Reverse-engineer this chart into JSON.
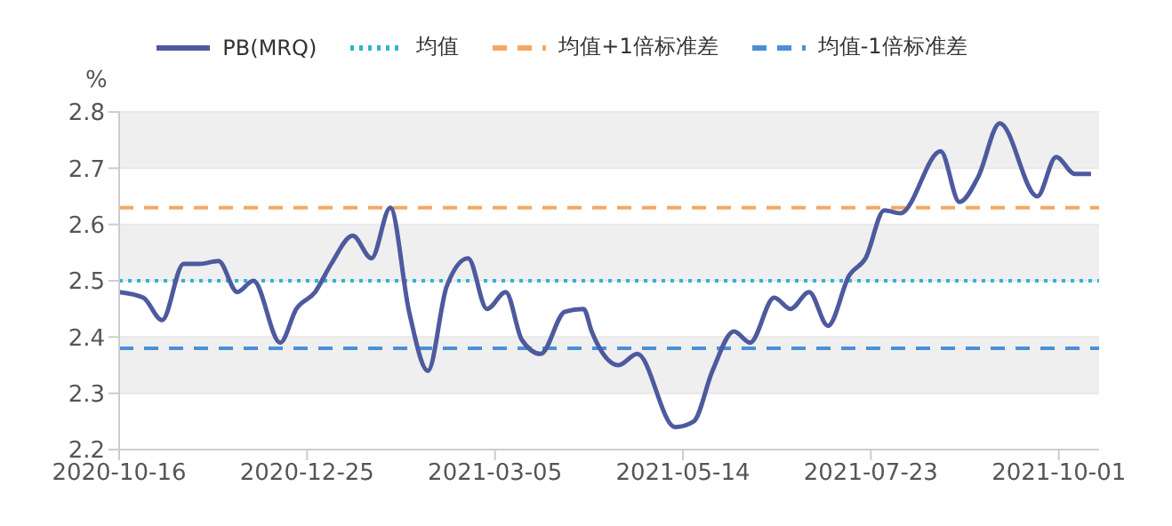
{
  "chart_data": {
    "type": "line",
    "ylabel": "%",
    "x": [
      "2020-10-16",
      "2020-10-25",
      "2020-11-01",
      "2020-11-09",
      "2020-11-15",
      "2020-11-22",
      "2020-11-29",
      "2020-12-05",
      "2020-12-15",
      "2020-12-21",
      "2020-12-28",
      "2021-01-03",
      "2021-01-11",
      "2021-01-18",
      "2021-01-25",
      "2021-02-01",
      "2021-02-08",
      "2021-02-15",
      "2021-02-23",
      "2021-03-02",
      "2021-03-09",
      "2021-03-15",
      "2021-03-22",
      "2021-03-31",
      "2021-04-07",
      "2021-04-10",
      "2021-04-20",
      "2021-04-27",
      "2021-05-11",
      "2021-05-18",
      "2021-05-25",
      "2021-06-02",
      "2021-06-08",
      "2021-06-17",
      "2021-06-23",
      "2021-06-30",
      "2021-07-07",
      "2021-07-15",
      "2021-07-21",
      "2021-07-28",
      "2021-08-03",
      "2021-08-18",
      "2021-08-25",
      "2021-09-01",
      "2021-09-09",
      "2021-09-23",
      "2021-09-30",
      "2021-10-07",
      "2021-10-13"
    ],
    "series": [
      {
        "name": "PB(MRQ)",
        "color": "#4e5a9e",
        "values": [
          2.48,
          2.47,
          2.43,
          2.53,
          2.53,
          2.535,
          2.48,
          2.5,
          2.39,
          2.45,
          2.48,
          2.53,
          2.58,
          2.54,
          2.63,
          2.445,
          2.34,
          2.49,
          2.54,
          2.45,
          2.48,
          2.395,
          2.37,
          2.445,
          2.45,
          2.41,
          2.35,
          2.37,
          2.24,
          2.25,
          2.34,
          2.41,
          2.39,
          2.47,
          2.45,
          2.48,
          2.42,
          2.51,
          2.54,
          2.625,
          2.62,
          2.73,
          2.64,
          2.685,
          2.78,
          2.65,
          2.72,
          2.69,
          2.69
        ]
      }
    ],
    "ref_lines": [
      {
        "axis": "y",
        "value": 2.5,
        "label": "均值",
        "color": "#2fb4d2",
        "line_style": "dotted"
      },
      {
        "axis": "y",
        "value": 2.63,
        "label": "均值+1倍标准差",
        "color": "#f4a862",
        "line_style": "dashed"
      },
      {
        "axis": "y",
        "value": 2.38,
        "label": "均值-1倍标准差",
        "color": "#4a8fd8",
        "line_style": "dashed"
      }
    ],
    "xlim": [
      "2020-10-16",
      "2021-10-16"
    ],
    "xticks": [
      "2020-10-16",
      "2020-12-25",
      "2021-03-05",
      "2021-05-14",
      "2021-07-23",
      "2021-10-01"
    ],
    "ylim": [
      2.2,
      2.8
    ],
    "yticks": [
      2.2,
      2.3,
      2.4,
      2.5,
      2.6,
      2.7,
      2.8
    ],
    "grid": "y",
    "legend": "top",
    "marker": "none",
    "line_style": "solid"
  }
}
